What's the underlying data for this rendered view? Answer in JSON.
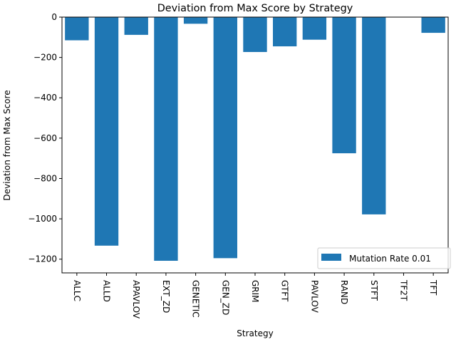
{
  "chart_data": {
    "type": "bar",
    "title": "Deviation from Max Score by Strategy",
    "xlabel": "Strategy",
    "ylabel": "Deviation from Max Score",
    "categories": [
      "ALLC",
      "ALLD",
      "APAVLOV",
      "EXT_ZD",
      "GENETIC",
      "GEN_ZD",
      "GRIM",
      "GTFT",
      "PAVLOV",
      "RAND",
      "STFT",
      "TF2T",
      "TFT"
    ],
    "series": [
      {
        "name": "Mutation Rate 0.01",
        "color": "#1f77b4",
        "values": [
          -115,
          -1133,
          -88,
          -1208,
          -33,
          -1195,
          -173,
          -145,
          -112,
          -675,
          -978,
          0,
          -78
        ]
      }
    ],
    "ylim": [
      -1268,
      0
    ],
    "yticks": [
      0,
      -200,
      -400,
      -600,
      -800,
      -1000,
      -1200
    ],
    "ytick_labels": [
      "0",
      "−200",
      "−400",
      "−600",
      "−800",
      "−1000",
      "−1200"
    ],
    "legend_position": "lower-right",
    "grid": false
  }
}
